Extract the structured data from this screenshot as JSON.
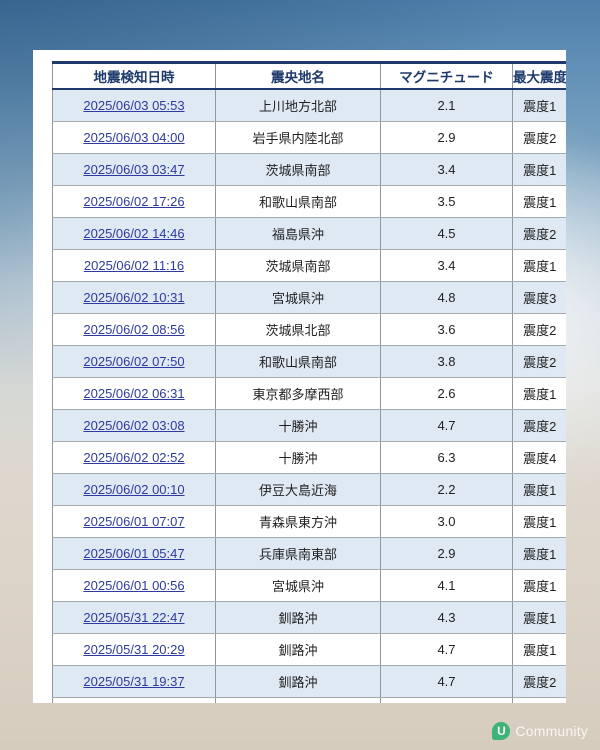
{
  "table": {
    "columns": {
      "datetime": "地震検知日時",
      "epicenter": "震央地名",
      "magnitude": "マグニチュード",
      "intensity": "最大震度"
    },
    "rows": [
      {
        "datetime": "2025/06/03 05:53",
        "epicenter": "上川地方北部",
        "magnitude": "2.1",
        "intensity": "震度1"
      },
      {
        "datetime": "2025/06/03 04:00",
        "epicenter": "岩手県内陸北部",
        "magnitude": "2.9",
        "intensity": "震度2"
      },
      {
        "datetime": "2025/06/03 03:47",
        "epicenter": "茨城県南部",
        "magnitude": "3.4",
        "intensity": "震度1"
      },
      {
        "datetime": "2025/06/02 17:26",
        "epicenter": "和歌山県南部",
        "magnitude": "3.5",
        "intensity": "震度1"
      },
      {
        "datetime": "2025/06/02 14:46",
        "epicenter": "福島県沖",
        "magnitude": "4.5",
        "intensity": "震度2"
      },
      {
        "datetime": "2025/06/02 11:16",
        "epicenter": "茨城県南部",
        "magnitude": "3.4",
        "intensity": "震度1"
      },
      {
        "datetime": "2025/06/02 10:31",
        "epicenter": "宮城県沖",
        "magnitude": "4.8",
        "intensity": "震度3"
      },
      {
        "datetime": "2025/06/02 08:56",
        "epicenter": "茨城県北部",
        "magnitude": "3.6",
        "intensity": "震度2"
      },
      {
        "datetime": "2025/06/02 07:50",
        "epicenter": "和歌山県南部",
        "magnitude": "3.8",
        "intensity": "震度2"
      },
      {
        "datetime": "2025/06/02 06:31",
        "epicenter": "東京都多摩西部",
        "magnitude": "2.6",
        "intensity": "震度1"
      },
      {
        "datetime": "2025/06/02 03:08",
        "epicenter": "十勝沖",
        "magnitude": "4.7",
        "intensity": "震度2"
      },
      {
        "datetime": "2025/06/02 02:52",
        "epicenter": "十勝沖",
        "magnitude": "6.3",
        "intensity": "震度4"
      },
      {
        "datetime": "2025/06/02 00:10",
        "epicenter": "伊豆大島近海",
        "magnitude": "2.2",
        "intensity": "震度1"
      },
      {
        "datetime": "2025/06/01 07:07",
        "epicenter": "青森県東方沖",
        "magnitude": "3.0",
        "intensity": "震度1"
      },
      {
        "datetime": "2025/06/01 05:47",
        "epicenter": "兵庫県南東部",
        "magnitude": "2.9",
        "intensity": "震度1"
      },
      {
        "datetime": "2025/06/01 00:56",
        "epicenter": "宮城県沖",
        "magnitude": "4.1",
        "intensity": "震度1"
      },
      {
        "datetime": "2025/05/31 22:47",
        "epicenter": "釧路沖",
        "magnitude": "4.3",
        "intensity": "震度1"
      },
      {
        "datetime": "2025/05/31 20:29",
        "epicenter": "釧路沖",
        "magnitude": "4.7",
        "intensity": "震度1"
      },
      {
        "datetime": "2025/05/31 19:37",
        "epicenter": "釧路沖",
        "magnitude": "4.7",
        "intensity": "震度2"
      }
    ]
  },
  "watermark": {
    "logo_letter": "U",
    "label": "Community"
  },
  "colors": {
    "header_navy": "#1d3a6b",
    "link_blue": "#2e3b9e",
    "row_alt_blue": "#dfe9f4",
    "cell_border_gray": "#8f98a1",
    "watermark_green": "#30b271"
  }
}
